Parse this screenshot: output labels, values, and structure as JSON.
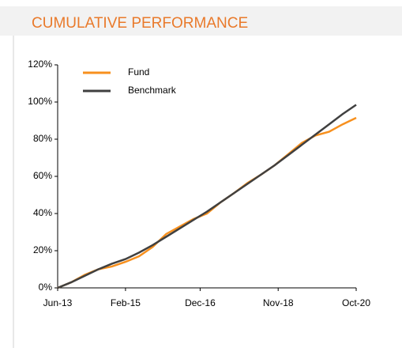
{
  "chart_data": {
    "type": "line",
    "title": "CUMULATIVE PERFORMANCE",
    "x": [
      "Jun-13",
      "Oct-13",
      "Feb-14",
      "Jun-14",
      "Oct-14",
      "Feb-15",
      "Jun-15",
      "Oct-15",
      "Feb-16",
      "Jun-16",
      "Oct-16",
      "Feb-17",
      "Jun-17",
      "Oct-17",
      "Feb-18",
      "Jun-18",
      "Oct-18",
      "Feb-19",
      "Jun-19",
      "Oct-19",
      "Feb-20",
      "Jun-20",
      "Oct-20"
    ],
    "series": [
      {
        "name": "Fund",
        "color": "#f7901e",
        "values": [
          0,
          3,
          7,
          10,
          11.5,
          14,
          17,
          22,
          29,
          33,
          37,
          40,
          46,
          51,
          56.5,
          61,
          66,
          72,
          78,
          82,
          84,
          88,
          91.5
        ]
      },
      {
        "name": "Benchmark",
        "color": "#404040",
        "values": [
          0,
          3,
          6.5,
          10,
          13,
          15.5,
          19,
          23,
          27.5,
          32,
          36.5,
          41,
          46,
          51,
          56,
          61,
          66,
          71.5,
          77,
          82.5,
          88,
          93.5,
          98.5
        ]
      }
    ],
    "xlim": [
      "Jun-13",
      "Oct-20"
    ],
    "xticks": [
      "Jun-13",
      "Feb-15",
      "Dec-16",
      "Nov-18",
      "Oct-20"
    ],
    "ylim": [
      0,
      120
    ],
    "yticks": [
      {
        "value": 0,
        "label": "0%"
      },
      {
        "value": 20,
        "label": "20%"
      },
      {
        "value": 40,
        "label": "40%"
      },
      {
        "value": 60,
        "label": "60%"
      },
      {
        "value": 80,
        "label": "80%"
      },
      {
        "value": 100,
        "label": "100%"
      },
      {
        "value": 120,
        "label": "120%"
      }
    ],
    "legend": "upper left"
  }
}
